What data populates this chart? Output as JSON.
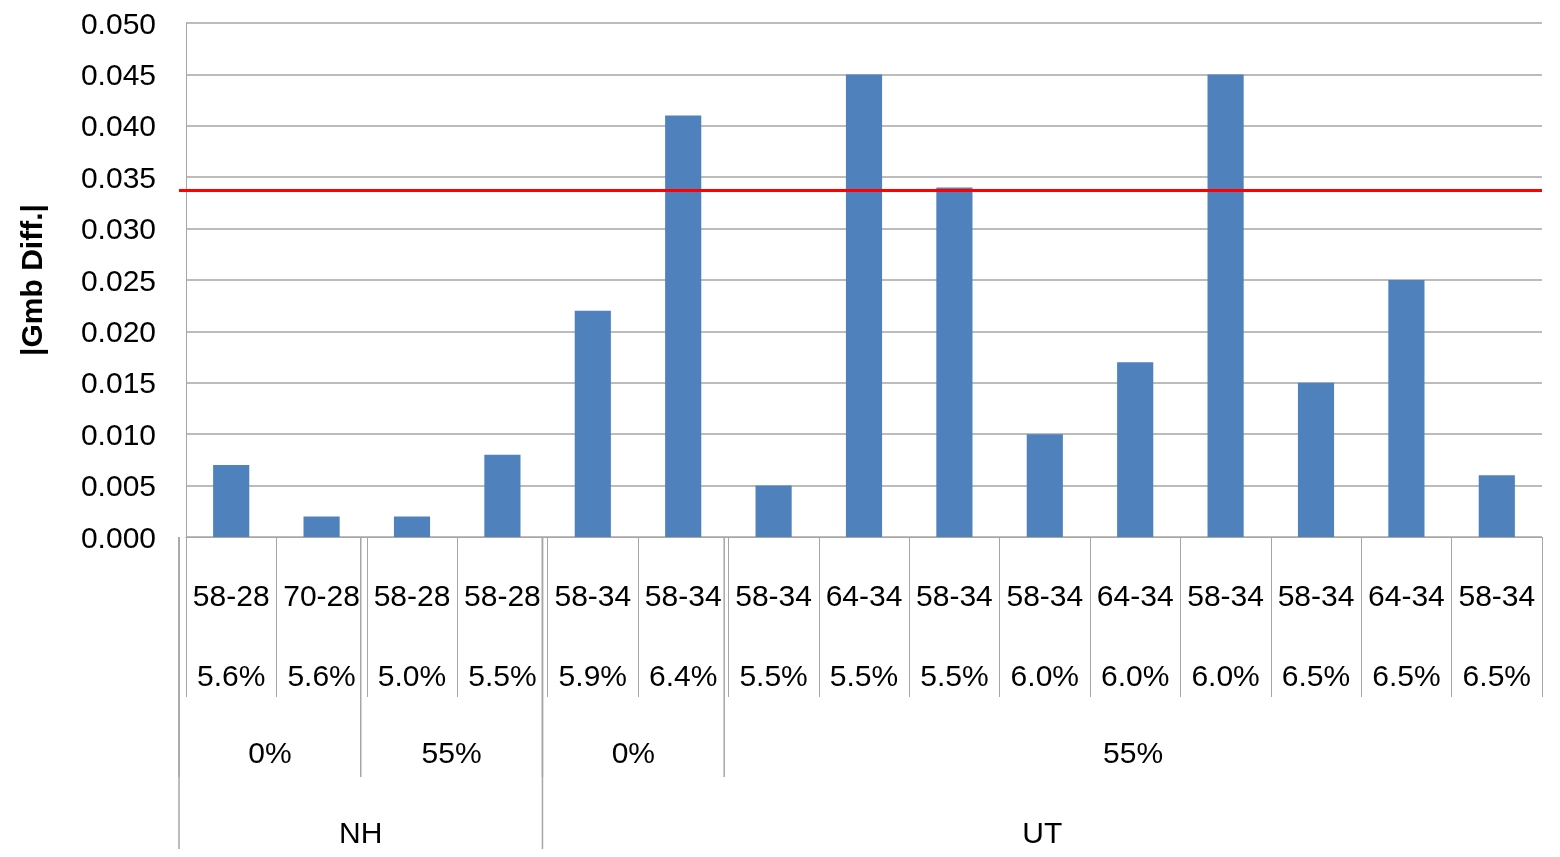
{
  "chart_data": {
    "type": "bar",
    "ylabel": "|Gmb Diff.|",
    "categories": [
      "58-28\n5.6%",
      "70-28\n5.6%",
      "58-28\n5.0%",
      "58-28\n5.5%",
      "58-34\n5.9%",
      "58-34\n6.4%",
      "58-34\n5.5%",
      "64-34\n5.5%",
      "58-34\n5.5%",
      "58-34\n6.0%",
      "64-34\n6.0%",
      "58-34\n6.0%",
      "58-34\n6.5%",
      "64-34\n6.5%",
      "58-34\n6.5%"
    ],
    "values": [
      0.007,
      0.002,
      0.002,
      0.008,
      0.022,
      0.041,
      0.005,
      0.045,
      0.034,
      0.01,
      0.017,
      0.045,
      0.015,
      0.025,
      0.006
    ],
    "color": "#4f81bd",
    "ylim": [
      0,
      0.05
    ],
    "yticks": [
      {
        "value": 0,
        "label": "0.000"
      },
      0.005,
      {
        "value": 0.01,
        "label": "0.010"
      },
      0.015,
      {
        "value": 0.02,
        "label": "0.020"
      },
      0.025,
      {
        "value": 0.03,
        "label": "0.030"
      },
      0.035,
      {
        "value": 0.04,
        "label": "0.040"
      },
      0.045,
      {
        "value": 0.05,
        "label": "0.050"
      }
    ],
    "grid": "y",
    "ref_lines": [
      {
        "axis": "y",
        "value": 0.0337,
        "color": "#ff0000"
      }
    ],
    "annotations": [
      "0%",
      "55%",
      "0%",
      "55%",
      "NH",
      "UT"
    ]
  }
}
